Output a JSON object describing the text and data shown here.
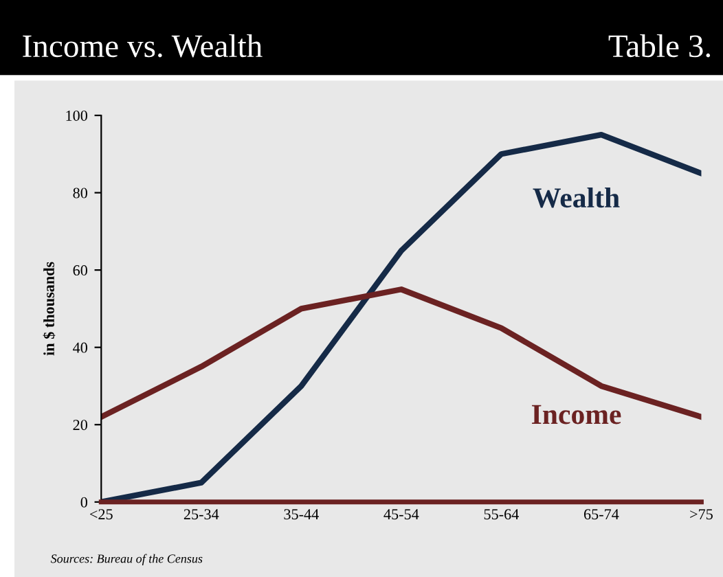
{
  "chart_data": {
    "type": "line",
    "title": "Income vs. Wealth",
    "subtitle": "Table 3.",
    "ylabel": "in $ thousands",
    "categories": [
      "<25",
      "25-34",
      "35-44",
      "45-54",
      "55-64",
      "65-74",
      ">75"
    ],
    "series": [
      {
        "name": "Wealth",
        "color": "#152a47",
        "values": [
          0,
          5,
          30,
          65,
          90,
          95,
          85
        ]
      },
      {
        "name": "Income",
        "color": "#6b2222",
        "values": [
          22,
          35,
          50,
          55,
          45,
          30,
          22
        ]
      }
    ],
    "ylim": [
      0,
      100
    ],
    "yticks": [
      0,
      20,
      40,
      60,
      80,
      100
    ],
    "grid": false,
    "legend": false,
    "annotations": [
      "Sources: Bureau of the Census"
    ]
  }
}
